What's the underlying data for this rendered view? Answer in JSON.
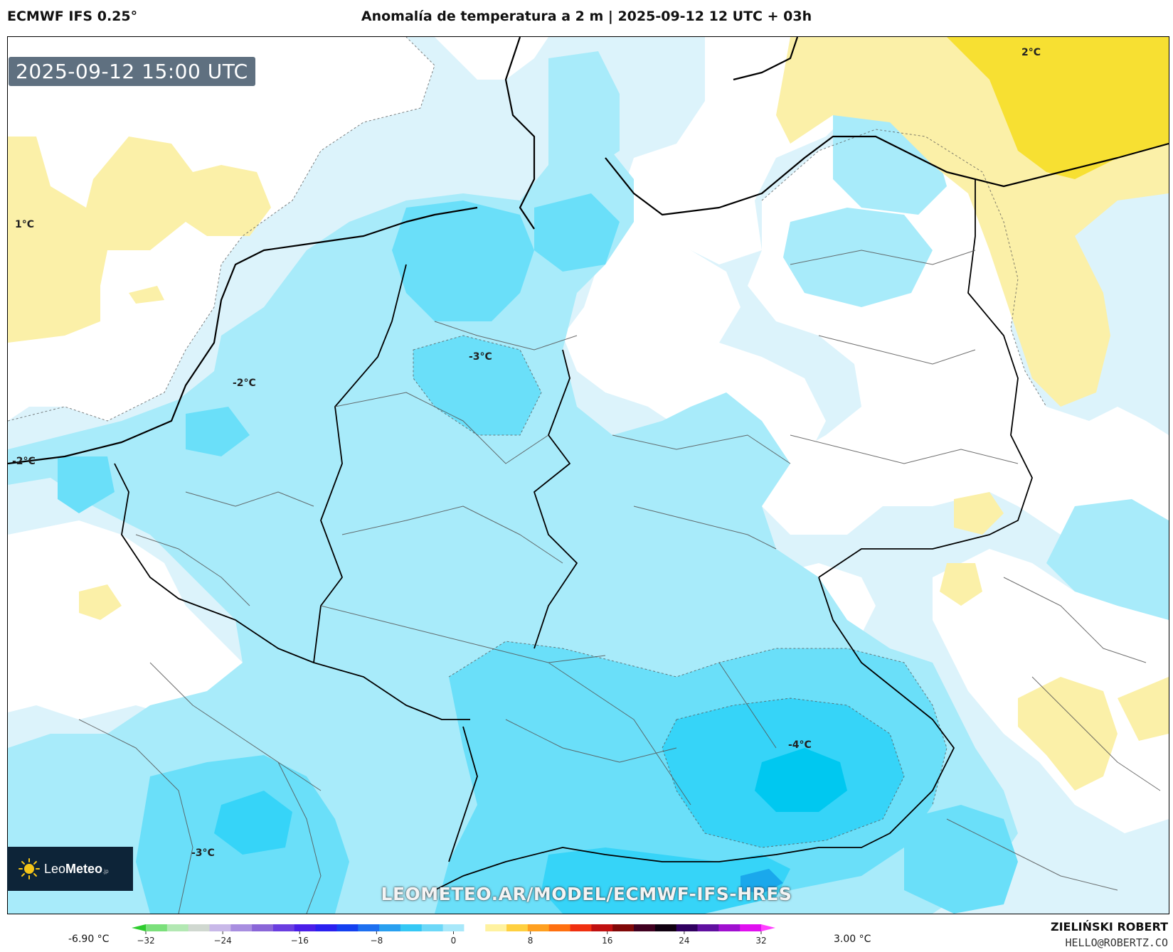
{
  "header": {
    "model": "ECMWF IFS 0.25°",
    "title": "Anomalía de temperatura a 2 m | 2025-09-12 12 UTC + 03h"
  },
  "map": {
    "valid_time": "2025-09-12 15:00 UTC",
    "contour_labels": [
      {
        "text": "2°C"
      },
      {
        "text": "1°C"
      },
      {
        "text": "-3°C"
      },
      {
        "text": "-2°C"
      },
      {
        "text": "-2°C"
      },
      {
        "text": "-4°C"
      },
      {
        "text": "-3°C"
      }
    ],
    "watermark_url": "LEOMETEO.AR/MODEL/ECMWF-IFS-HRES"
  },
  "logo": {
    "brand_light": "Leo",
    "brand_bold": "Meteo",
    "suffix": ".jp"
  },
  "legend": {
    "min_label": "-6.90 °C",
    "max_label": "3.00 °C",
    "ticks": [
      "−32",
      "−24",
      "−16",
      "−8",
      "0",
      "8",
      "16",
      "24",
      "32"
    ],
    "colors": [
      "#2ecc2e",
      "#7be07b",
      "#b3e8b3",
      "#d0d8d0",
      "#c8b8e8",
      "#a88ee0",
      "#8a66d8",
      "#6a3ee0",
      "#4a1ee8",
      "#2a20f0",
      "#1440f0",
      "#1e70f0",
      "#29a0f0",
      "#35c8f5",
      "#6dd8f8",
      "#a8e8fa",
      "#ffffff",
      "#fff2a0",
      "#ffd040",
      "#ffa020",
      "#ff7010",
      "#f03010",
      "#c01010",
      "#800808",
      "#400020",
      "#100010",
      "#300060",
      "#6010a0",
      "#a010d0",
      "#e010f0",
      "#ff40ff"
    ],
    "anomaly_colors": {
      "minus5": "#00c8f0",
      "minus4": "#36d4f8",
      "minus3": "#6adff9",
      "minus2": "#a8ebfa",
      "minus1": "#dcf3fb",
      "zero": "#ffffff",
      "plus1": "#fbf0a8",
      "plus2": "#f7e032"
    }
  },
  "credit": {
    "name": "ZIELIŃSKI ROBERT",
    "email": "HELLO@ROBERTZ.CO"
  }
}
